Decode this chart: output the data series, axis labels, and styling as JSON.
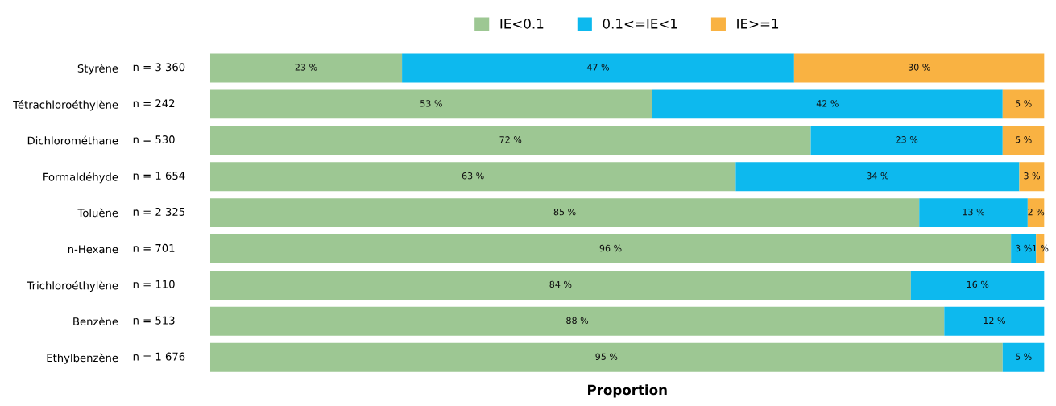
{
  "chart_data": {
    "type": "bar",
    "orientation": "horizontal",
    "stacked": true,
    "xlabel": "Proportion",
    "legend": "top",
    "grid": false,
    "tick_labels": "y",
    "categories": [
      "Styrène",
      "Tétrachloroéthylène",
      "Dichlorométhane",
      "Formaldéhyde",
      "Toluène",
      "n-Hexane",
      "Trichloroéthylène",
      "Benzène",
      "Ethylbenzène"
    ],
    "y2_categories": [
      "n = 3 360",
      "n = 242",
      "n = 530",
      "n = 1 654",
      "n = 2 325",
      "n = 701",
      "n = 110",
      "n = 513",
      "n = 1 676"
    ],
    "series": [
      {
        "name": "IE<0.1",
        "color": "#9dc793",
        "values": [
          23,
          53,
          72,
          63,
          85,
          96,
          84,
          88,
          95
        ],
        "value_labels": [
          "23 %",
          "53 %",
          "72 %",
          "63 %",
          "85 %",
          "96 %",
          "84 %",
          "88 %",
          "95 %"
        ]
      },
      {
        "name": "0.1<=IE<1",
        "color": "#0db9ee",
        "values": [
          47,
          42,
          23,
          34,
          13,
          3,
          16,
          12,
          5
        ],
        "value_labels": [
          "47 %",
          "42 %",
          "23 %",
          "34 %",
          "13 %",
          "3 %",
          "16 %",
          "12 %",
          "5 %"
        ]
      },
      {
        "name": "IE>=1",
        "color": "#f9b242",
        "values": [
          30,
          5,
          5,
          3,
          2,
          1,
          null,
          null,
          null
        ],
        "value_labels": [
          "30 %",
          "5 %",
          "5 %",
          "3 %",
          "2 %",
          "1 %",
          null,
          null,
          null
        ]
      }
    ]
  }
}
